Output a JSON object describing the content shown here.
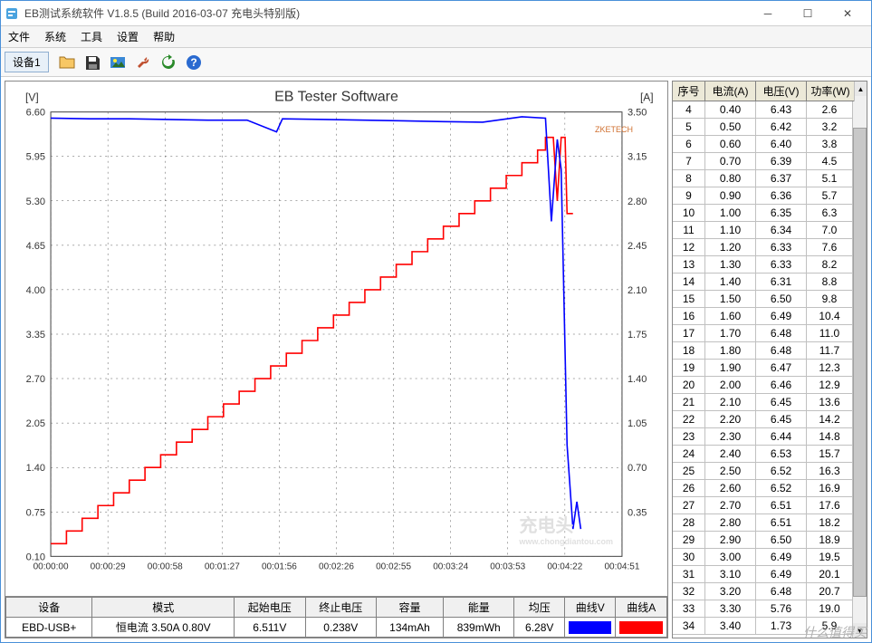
{
  "window": {
    "title": "EB测试系统软件 V1.8.5 (Build 2016-03-07 充电头特别版)"
  },
  "menubar": [
    "文件",
    "系统",
    "工具",
    "设置",
    "帮助"
  ],
  "toolbar": {
    "tab_label": "设备1",
    "icons": [
      {
        "name": "folder-icon",
        "fill": "#f7c765",
        "glyph": "folder"
      },
      {
        "name": "save-icon",
        "fill": "#333333",
        "glyph": "floppy"
      },
      {
        "name": "image-icon",
        "fill": "#3a88d6",
        "glyph": "image"
      },
      {
        "name": "tools-icon",
        "fill": "#c05030",
        "glyph": "wrench"
      },
      {
        "name": "refresh-icon",
        "fill": "#2a8a2a",
        "glyph": "refresh"
      },
      {
        "name": "help-icon",
        "fill": "#2a6ad0",
        "glyph": "help"
      }
    ]
  },
  "chart": {
    "title": "EB Tester Software",
    "brand_mark": "ZKETECH",
    "watermark": "充电头",
    "watermark_sub": "www.chongdiantou.com",
    "left_axis": {
      "label": "[V]",
      "ticks": [
        "6.60",
        "5.95",
        "5.30",
        "4.65",
        "4.00",
        "3.35",
        "2.70",
        "2.05",
        "1.40",
        "0.75",
        "0.10"
      ],
      "min": 0.1,
      "max": 6.6
    },
    "right_axis": {
      "label": "[A]",
      "ticks": [
        "3.50",
        "3.15",
        "2.80",
        "2.45",
        "2.10",
        "1.75",
        "1.40",
        "1.05",
        "0.70",
        "0.35",
        ""
      ],
      "min": 0.0,
      "max": 3.5
    },
    "x_axis": {
      "ticks": [
        "00:00:00",
        "00:00:29",
        "00:00:58",
        "00:01:27",
        "00:01:56",
        "00:02:26",
        "00:02:55",
        "00:03:24",
        "00:03:53",
        "00:04:22",
        "00:04:51"
      ],
      "min_sec": 0,
      "max_sec": 291
    },
    "grid_color": "#545454",
    "bg_color": "#ffffff",
    "line_v_color": "#0000ff",
    "line_a_color": "#ff0000",
    "voltage_series": [
      [
        0,
        6.51
      ],
      [
        20,
        6.5
      ],
      [
        40,
        6.5
      ],
      [
        60,
        6.49
      ],
      [
        80,
        6.48
      ],
      [
        100,
        6.48
      ],
      [
        115,
        6.31
      ],
      [
        118,
        6.5
      ],
      [
        140,
        6.49
      ],
      [
        160,
        6.48
      ],
      [
        180,
        6.47
      ],
      [
        200,
        6.46
      ],
      [
        220,
        6.45
      ],
      [
        240,
        6.53
      ],
      [
        252,
        6.51
      ],
      [
        255,
        5.0
      ],
      [
        258,
        6.2
      ],
      [
        260,
        5.76
      ],
      [
        263,
        1.73
      ],
      [
        266,
        0.5
      ],
      [
        268,
        0.9
      ],
      [
        270,
        0.5
      ]
    ],
    "current_series": [
      [
        0,
        0.1
      ],
      [
        8,
        0.1
      ],
      [
        8,
        0.2
      ],
      [
        16,
        0.2
      ],
      [
        16,
        0.3
      ],
      [
        24,
        0.3
      ],
      [
        24,
        0.4
      ],
      [
        32,
        0.4
      ],
      [
        32,
        0.5
      ],
      [
        40,
        0.5
      ],
      [
        40,
        0.6
      ],
      [
        48,
        0.6
      ],
      [
        48,
        0.7
      ],
      [
        56,
        0.7
      ],
      [
        56,
        0.8
      ],
      [
        64,
        0.8
      ],
      [
        64,
        0.9
      ],
      [
        72,
        0.9
      ],
      [
        72,
        1.0
      ],
      [
        80,
        1.0
      ],
      [
        80,
        1.1
      ],
      [
        88,
        1.1
      ],
      [
        88,
        1.2
      ],
      [
        96,
        1.2
      ],
      [
        96,
        1.3
      ],
      [
        104,
        1.3
      ],
      [
        104,
        1.4
      ],
      [
        112,
        1.4
      ],
      [
        112,
        1.5
      ],
      [
        120,
        1.5
      ],
      [
        120,
        1.6
      ],
      [
        128,
        1.6
      ],
      [
        128,
        1.7
      ],
      [
        136,
        1.7
      ],
      [
        136,
        1.8
      ],
      [
        144,
        1.8
      ],
      [
        144,
        1.9
      ],
      [
        152,
        1.9
      ],
      [
        152,
        2.0
      ],
      [
        160,
        2.0
      ],
      [
        160,
        2.1
      ],
      [
        168,
        2.1
      ],
      [
        168,
        2.2
      ],
      [
        176,
        2.2
      ],
      [
        176,
        2.3
      ],
      [
        184,
        2.3
      ],
      [
        184,
        2.4
      ],
      [
        192,
        2.4
      ],
      [
        192,
        2.5
      ],
      [
        200,
        2.5
      ],
      [
        200,
        2.6
      ],
      [
        208,
        2.6
      ],
      [
        208,
        2.7
      ],
      [
        216,
        2.7
      ],
      [
        216,
        2.8
      ],
      [
        224,
        2.8
      ],
      [
        224,
        2.9
      ],
      [
        232,
        2.9
      ],
      [
        232,
        3.0
      ],
      [
        240,
        3.0
      ],
      [
        240,
        3.1
      ],
      [
        248,
        3.1
      ],
      [
        248,
        3.2
      ],
      [
        252,
        3.2
      ],
      [
        252,
        3.3
      ],
      [
        256,
        3.3
      ],
      [
        258,
        2.8
      ],
      [
        260,
        3.3
      ],
      [
        262,
        3.3
      ],
      [
        263,
        2.7
      ],
      [
        266,
        2.7
      ]
    ]
  },
  "summary_table": {
    "headers": [
      "设备",
      "模式",
      "起始电压",
      "终止电压",
      "容量",
      "能量",
      "均压",
      "曲线V",
      "曲线A"
    ],
    "row": {
      "device": "EBD-USB+",
      "mode": "恒电流  3.50A  0.80V",
      "v_start": "6.511V",
      "v_end": "0.238V",
      "capacity": "134mAh",
      "energy": "839mWh",
      "v_avg": "6.28V",
      "color_v": "#0000ff",
      "color_a": "#ff0000"
    }
  },
  "data_table": {
    "headers": [
      "序号",
      "电流(A)",
      "电压(V)",
      "功率(W)"
    ],
    "rows": [
      [
        4,
        "0.40",
        "6.43",
        "2.6"
      ],
      [
        5,
        "0.50",
        "6.42",
        "3.2"
      ],
      [
        6,
        "0.60",
        "6.40",
        "3.8"
      ],
      [
        7,
        "0.70",
        "6.39",
        "4.5"
      ],
      [
        8,
        "0.80",
        "6.37",
        "5.1"
      ],
      [
        9,
        "0.90",
        "6.36",
        "5.7"
      ],
      [
        10,
        "1.00",
        "6.35",
        "6.3"
      ],
      [
        11,
        "1.10",
        "6.34",
        "7.0"
      ],
      [
        12,
        "1.20",
        "6.33",
        "7.6"
      ],
      [
        13,
        "1.30",
        "6.33",
        "8.2"
      ],
      [
        14,
        "1.40",
        "6.31",
        "8.8"
      ],
      [
        15,
        "1.50",
        "6.50",
        "9.8"
      ],
      [
        16,
        "1.60",
        "6.49",
        "10.4"
      ],
      [
        17,
        "1.70",
        "6.48",
        "11.0"
      ],
      [
        18,
        "1.80",
        "6.48",
        "11.7"
      ],
      [
        19,
        "1.90",
        "6.47",
        "12.3"
      ],
      [
        20,
        "2.00",
        "6.46",
        "12.9"
      ],
      [
        21,
        "2.10",
        "6.45",
        "13.6"
      ],
      [
        22,
        "2.20",
        "6.45",
        "14.2"
      ],
      [
        23,
        "2.30",
        "6.44",
        "14.8"
      ],
      [
        24,
        "2.40",
        "6.53",
        "15.7"
      ],
      [
        25,
        "2.50",
        "6.52",
        "16.3"
      ],
      [
        26,
        "2.60",
        "6.52",
        "16.9"
      ],
      [
        27,
        "2.70",
        "6.51",
        "17.6"
      ],
      [
        28,
        "2.80",
        "6.51",
        "18.2"
      ],
      [
        29,
        "2.90",
        "6.50",
        "18.9"
      ],
      [
        30,
        "3.00",
        "6.49",
        "19.5"
      ],
      [
        31,
        "3.10",
        "6.49",
        "20.1"
      ],
      [
        32,
        "3.20",
        "6.48",
        "20.7"
      ],
      [
        33,
        "3.30",
        "5.76",
        "19.0"
      ],
      [
        34,
        "3.40",
        "1.73",
        "5.9"
      ]
    ]
  },
  "bottom_watermark": "什么值得买"
}
